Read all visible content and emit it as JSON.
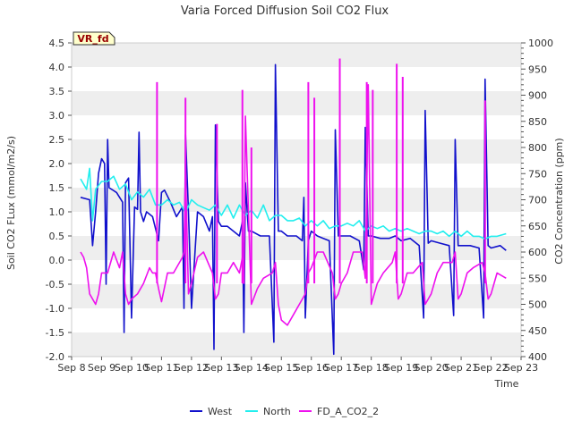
{
  "chart_data": {
    "type": "line",
    "title": "Varia Forced Diffusion Soil CO2 Flux",
    "badge": "VR_fd",
    "xlabel": "Time",
    "ylabel_left": "Soil CO2 FLux (mmol/m2/s)",
    "ylabel_right": "CO2 Concentration (ppm)",
    "ylim_left": [
      -2.0,
      4.5
    ],
    "ylim_right": [
      400,
      1000
    ],
    "xlim_days": [
      8,
      23
    ],
    "x_ticks": [
      "Sep 8",
      "Sep 9",
      "Sep 10",
      "Sep 11",
      "Sep 12",
      "Sep 13",
      "Sep 14",
      "Sep 15",
      "Sep 16",
      "Sep 17",
      "Sep 18",
      "Sep 19",
      "Sep 20",
      "Sep 21",
      "Sep 22",
      "Sep 23"
    ],
    "y_ticks_left": [
      "-2.0",
      "-1.5",
      "-1.0",
      "-0.5",
      "0.0",
      "0.5",
      "1.0",
      "1.5",
      "2.0",
      "2.5",
      "3.0",
      "3.5",
      "4.0",
      "4.5"
    ],
    "y_ticks_right": [
      "400",
      "450",
      "500",
      "550",
      "600",
      "650",
      "700",
      "750",
      "800",
      "850",
      "900",
      "950",
      "1000"
    ],
    "grid": "horizontal bands",
    "legend": "bottom-center",
    "colors": {
      "West": "#1111cc",
      "North": "#22eeee",
      "FD_A_CO2_2": "#ee11ee",
      "band": "#eeeeee",
      "badge_bg": "#ffffcc",
      "badge_text": "#990000"
    },
    "series": [
      {
        "name": "West",
        "axis": "left",
        "x": [
          8.3,
          8.6,
          8.7,
          8.8,
          8.9,
          9.0,
          9.1,
          9.15,
          9.2,
          9.25,
          9.5,
          9.7,
          9.75,
          9.8,
          9.9,
          10.0,
          10.1,
          10.2,
          10.25,
          10.3,
          10.4,
          10.5,
          10.7,
          10.9,
          11.0,
          11.1,
          11.3,
          11.5,
          11.7,
          11.75,
          11.8,
          11.9,
          12.0,
          12.2,
          12.4,
          12.6,
          12.7,
          12.75,
          12.8,
          12.9,
          13.0,
          13.2,
          13.4,
          13.6,
          13.7,
          13.75,
          13.8,
          13.9,
          14.0,
          14.3,
          14.6,
          14.75,
          14.8,
          14.9,
          15.0,
          15.2,
          15.5,
          15.7,
          15.75,
          15.8,
          15.9,
          16.0,
          16.2,
          16.4,
          16.6,
          16.75,
          16.8,
          16.9,
          17.0,
          17.3,
          17.6,
          17.75,
          17.8,
          17.9,
          18.0,
          18.3,
          18.6,
          18.8,
          19.0,
          19.3,
          19.6,
          19.75,
          19.8,
          19.9,
          20.0,
          20.3,
          20.6,
          20.75,
          20.8,
          20.9,
          21.0,
          21.3,
          21.6,
          21.75,
          21.8,
          21.9,
          22.0,
          22.3,
          22.5
        ],
        "y": [
          1.3,
          1.25,
          0.3,
          1.0,
          1.8,
          2.1,
          2.0,
          -0.5,
          2.5,
          1.5,
          1.4,
          1.2,
          -1.5,
          1.6,
          1.7,
          -1.2,
          1.1,
          1.05,
          2.65,
          1.0,
          0.8,
          1.0,
          0.9,
          0.4,
          1.4,
          1.45,
          1.2,
          0.9,
          1.1,
          -1.0,
          2.6,
          1.0,
          -1.0,
          1.0,
          0.9,
          0.6,
          0.9,
          -1.85,
          2.8,
          0.8,
          0.7,
          0.7,
          0.6,
          0.5,
          0.8,
          -1.5,
          1.6,
          0.6,
          0.6,
          0.5,
          0.5,
          -1.7,
          4.05,
          0.6,
          0.6,
          0.5,
          0.5,
          0.4,
          1.3,
          -1.2,
          0.4,
          0.6,
          0.5,
          0.45,
          0.4,
          -1.95,
          2.7,
          0.5,
          0.5,
          0.5,
          0.4,
          -0.2,
          2.75,
          0.5,
          0.5,
          0.45,
          0.45,
          0.5,
          0.4,
          0.45,
          0.3,
          -1.2,
          3.1,
          0.35,
          0.4,
          0.35,
          0.3,
          -1.15,
          2.5,
          0.3,
          0.3,
          0.3,
          0.25,
          -1.2,
          3.75,
          0.3,
          0.25,
          0.3,
          0.2
        ]
      },
      {
        "name": "North",
        "axis": "right",
        "x": [
          8.3,
          8.5,
          8.6,
          8.7,
          8.8,
          9.0,
          9.2,
          9.4,
          9.6,
          9.8,
          10.0,
          10.2,
          10.4,
          10.6,
          10.8,
          11.0,
          11.2,
          11.4,
          11.6,
          11.8,
          12.0,
          12.2,
          12.4,
          12.6,
          12.8,
          13.0,
          13.2,
          13.4,
          13.6,
          13.8,
          14.0,
          14.2,
          14.4,
          14.6,
          14.8,
          15.0,
          15.2,
          15.4,
          15.6,
          15.8,
          16.0,
          16.2,
          16.4,
          16.6,
          16.8,
          17.0,
          17.2,
          17.4,
          17.6,
          17.8,
          18.0,
          18.2,
          18.4,
          18.6,
          18.8,
          19.0,
          19.2,
          19.4,
          19.6,
          19.8,
          20.0,
          20.2,
          20.4,
          20.6,
          20.8,
          21.0,
          21.2,
          21.4,
          21.6,
          21.8,
          22.0,
          22.2,
          22.5
        ],
        "y": [
          740,
          720,
          760,
          660,
          720,
          735,
          735,
          745,
          720,
          730,
          700,
          715,
          705,
          720,
          690,
          690,
          700,
          690,
          695,
          675,
          700,
          690,
          685,
          680,
          690,
          670,
          690,
          665,
          690,
          670,
          680,
          665,
          690,
          660,
          670,
          670,
          660,
          660,
          665,
          650,
          660,
          650,
          660,
          645,
          650,
          650,
          655,
          650,
          660,
          640,
          650,
          645,
          650,
          640,
          645,
          640,
          645,
          640,
          635,
          640,
          640,
          635,
          640,
          630,
          640,
          630,
          640,
          630,
          630,
          625,
          630,
          630,
          635
        ]
      },
      {
        "name": "FD_A_CO2_2",
        "axis": "right",
        "x": [
          8.3,
          8.4,
          8.5,
          8.6,
          8.8,
          8.9,
          9.0,
          9.2,
          9.4,
          9.6,
          9.7,
          9.8,
          9.9,
          10.0,
          10.2,
          10.4,
          10.6,
          10.7,
          10.8,
          10.9,
          11.0,
          11.2,
          11.4,
          11.7,
          11.75,
          11.8,
          11.9,
          12.0,
          12.2,
          12.4,
          12.7,
          12.8,
          12.9,
          13.0,
          13.2,
          13.4,
          13.6,
          13.7,
          13.75,
          13.8,
          14.0,
          14.2,
          14.4,
          14.7,
          14.8,
          14.9,
          15.0,
          15.2,
          15.4,
          15.7,
          15.8,
          15.9,
          16.0,
          16.2,
          16.4,
          16.7,
          16.8,
          16.9,
          17.0,
          17.2,
          17.4,
          17.7,
          17.8,
          17.9,
          18.0,
          18.2,
          18.4,
          18.7,
          18.8,
          18.9,
          19.0,
          19.2,
          19.4,
          19.7,
          19.8,
          19.9,
          20.0,
          20.2,
          20.4,
          20.7,
          20.8,
          20.9,
          21.0,
          21.2,
          21.4,
          21.7,
          21.8,
          21.9,
          22.0,
          22.2,
          22.5
        ],
        "y": [
          600,
          590,
          570,
          520,
          500,
          520,
          560,
          560,
          600,
          570,
          600,
          520,
          500,
          510,
          520,
          540,
          570,
          560,
          560,
          530,
          505,
          560,
          560,
          590,
          600,
          760,
          520,
          540,
          590,
          600,
          560,
          510,
          520,
          560,
          560,
          580,
          560,
          590,
          540,
          860,
          500,
          530,
          550,
          560,
          580,
          500,
          470,
          460,
          480,
          510,
          520,
          560,
          570,
          600,
          600,
          560,
          510,
          520,
          540,
          560,
          600,
          600,
          550,
          920,
          500,
          540,
          560,
          580,
          600,
          510,
          520,
          560,
          560,
          580,
          500,
          510,
          520,
          560,
          580,
          580,
          600,
          510,
          520,
          560,
          570,
          580,
          560,
          510,
          520,
          560,
          550
        ]
      }
    ],
    "spikes": [
      {
        "series": "FD_A_CO2_2",
        "x": 10.85,
        "y": 925
      },
      {
        "series": "FD_A_CO2_2",
        "x": 11.8,
        "y": 895
      },
      {
        "series": "FD_A_CO2_2",
        "x": 12.85,
        "y": 845
      },
      {
        "series": "FD_A_CO2_2",
        "x": 13.7,
        "y": 910
      },
      {
        "series": "FD_A_CO2_2",
        "x": 14.0,
        "y": 800
      },
      {
        "series": "FD_A_CO2_2",
        "x": 15.9,
        "y": 925
      },
      {
        "series": "FD_A_CO2_2",
        "x": 16.1,
        "y": 895
      },
      {
        "series": "FD_A_CO2_2",
        "x": 16.95,
        "y": 970
      },
      {
        "series": "FD_A_CO2_2",
        "x": 17.85,
        "y": 925
      },
      {
        "series": "FD_A_CO2_2",
        "x": 18.05,
        "y": 910
      },
      {
        "series": "FD_A_CO2_2",
        "x": 18.85,
        "y": 960
      },
      {
        "series": "FD_A_CO2_2",
        "x": 19.05,
        "y": 935
      },
      {
        "series": "FD_A_CO2_2",
        "x": 21.8,
        "y": 890
      }
    ]
  }
}
